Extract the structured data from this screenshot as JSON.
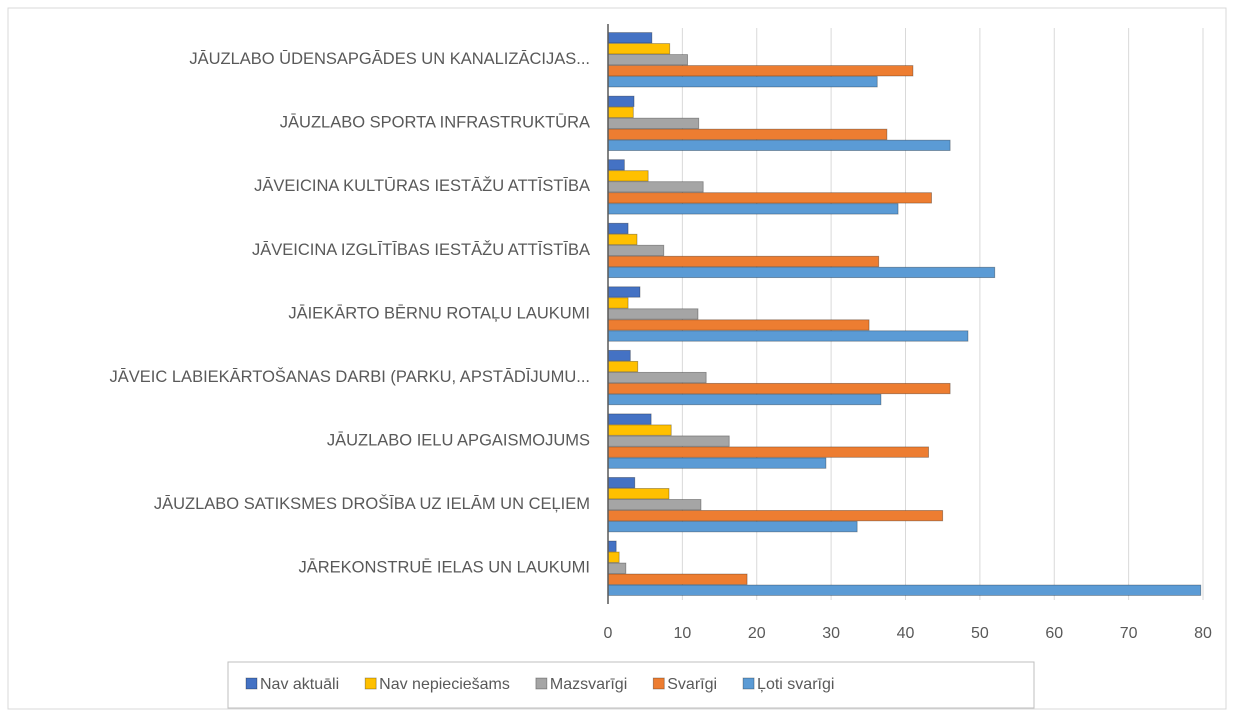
{
  "chart_data": {
    "type": "bar",
    "orientation": "horizontal",
    "categories": [
      "JĀUZLABO ŪDENSAPGĀDES UN KANALIZĀCIJAS...",
      "JĀUZLABO SPORTA INFRASTRUKTŪRA",
      "JĀVEICINA KULTŪRAS IESTĀŽU ATTĪSTĪBA",
      "JĀVEICINA IZGLĪTĪBAS IESTĀŽU ATTĪSTĪBA",
      "JĀIEKĀRTO BĒRNU ROTAĻU LAUKUMI",
      "JĀVEIC LABIEKĀRTOŠANAS DARBI (PARKU, APSTĀDĪJUMU...",
      "JĀUZLABO IELU APGAISMOJUMS",
      "JĀUZLABO SATIKSMES DROŠĪBA UZ IELĀM UN CEĻIEM",
      "JĀREKONSTRUĒ IELAS UN LAUKUMI"
    ],
    "series": [
      {
        "name": "Nav aktuāli",
        "color": "#4472c4",
        "values": [
          5.9,
          3.5,
          2.2,
          2.7,
          4.3,
          3,
          5.8,
          3.6,
          1.1
        ]
      },
      {
        "name": "Nav nepieciešams",
        "color": "#ffc000",
        "values": [
          8.3,
          3.4,
          5.4,
          3.9,
          2.7,
          4,
          8.5,
          8.2,
          1.5
        ]
      },
      {
        "name": "Mazsvarīgi",
        "color": "#a5a5a5",
        "values": [
          10.7,
          12.2,
          12.8,
          7.5,
          12.1,
          13.2,
          16.3,
          12.5,
          2.4
        ]
      },
      {
        "name": "Svarīgi",
        "color": "#ed7d31",
        "values": [
          41,
          37.5,
          43.5,
          36.4,
          35.1,
          46,
          43.1,
          45,
          18.7
        ]
      },
      {
        "name": "Ļoti svarīgi",
        "color": "#5b9bd5",
        "values": [
          36.2,
          46,
          39,
          52,
          48.4,
          36.7,
          29.3,
          33.5,
          79.7
        ]
      }
    ],
    "xlim": [
      0,
      80
    ],
    "xticks": [
      0,
      10,
      20,
      30,
      40,
      50,
      60,
      70,
      80
    ],
    "grid": true,
    "legend": "bottom"
  }
}
